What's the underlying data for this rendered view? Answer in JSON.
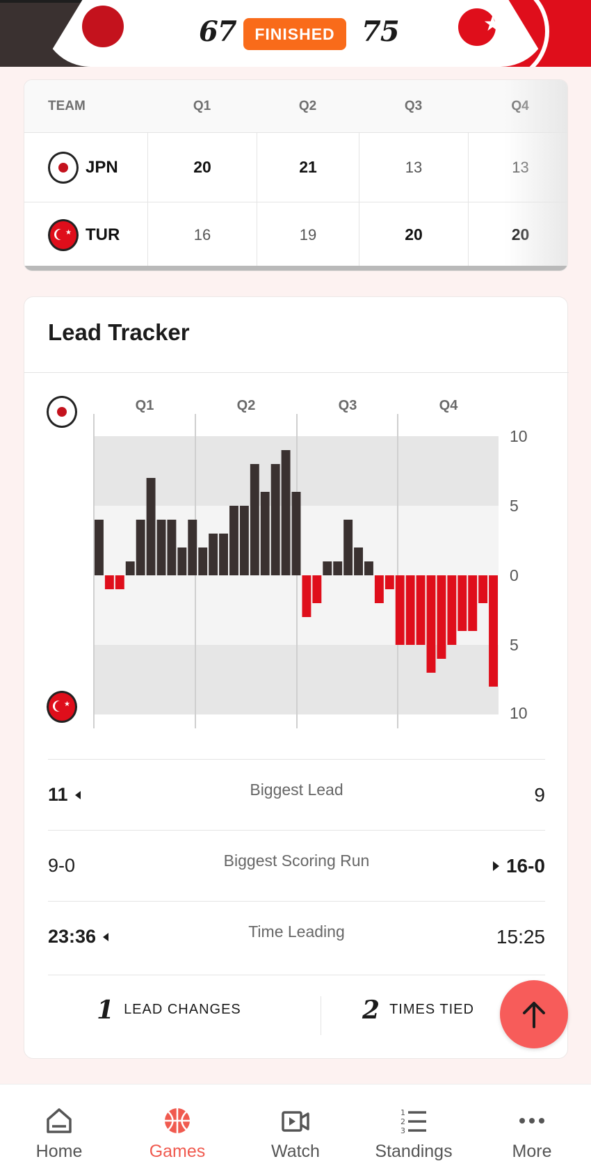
{
  "game": {
    "home_score": "67",
    "away_score": "75",
    "status": "FINISHED"
  },
  "box_score": {
    "headers": [
      "TEAM",
      "Q1",
      "Q2",
      "Q3",
      "Q4"
    ],
    "rows": [
      {
        "team": "JPN",
        "q": [
          "20",
          "21",
          "13",
          "13"
        ],
        "bold": [
          true,
          true,
          false,
          false
        ]
      },
      {
        "team": "TUR",
        "q": [
          "16",
          "19",
          "20",
          "20"
        ],
        "bold": [
          false,
          false,
          true,
          true
        ]
      }
    ]
  },
  "lead_tracker": {
    "title": "Lead Tracker",
    "stats": [
      {
        "left": "11",
        "label": "Biggest Lead",
        "right": "9"
      },
      {
        "left": "9-0",
        "label": "Biggest Scoring Run",
        "right": "16-0"
      },
      {
        "left": "23:36",
        "label": "Time Leading",
        "right": "15:25"
      }
    ],
    "lead_changes": {
      "count": "1",
      "label": "LEAD CHANGES"
    },
    "times_tied": {
      "count": "2",
      "label": "TIMES TIED"
    }
  },
  "chart_data": {
    "type": "bar",
    "x_ticks": [
      "Q1",
      "Q2",
      "Q3",
      "Q4"
    ],
    "y_ticks": [
      "10",
      "5",
      "0",
      "5",
      "10"
    ],
    "ylim": [
      -10,
      10
    ],
    "series": [
      {
        "values": [
          4,
          -1,
          -1,
          1,
          4,
          7,
          4,
          4,
          2,
          4,
          2,
          3,
          3,
          5,
          5,
          8,
          6,
          8,
          9,
          6,
          -3,
          -2,
          1,
          1,
          4,
          2,
          1,
          -2,
          -1,
          -5,
          -5,
          -5,
          -7,
          -6,
          -5,
          -4,
          -4,
          -2,
          -8
        ]
      }
    ],
    "colors": {
      "home": "#3a3130",
      "away": "#df0e1b"
    }
  },
  "nav": [
    {
      "label": "Home",
      "icon": "home-icon",
      "active": false
    },
    {
      "label": "Games",
      "icon": "basketball-icon",
      "active": true
    },
    {
      "label": "Watch",
      "icon": "video-icon",
      "active": false
    },
    {
      "label": "Standings",
      "icon": "list-icon",
      "active": false
    },
    {
      "label": "More",
      "icon": "more-icon",
      "active": false
    }
  ]
}
